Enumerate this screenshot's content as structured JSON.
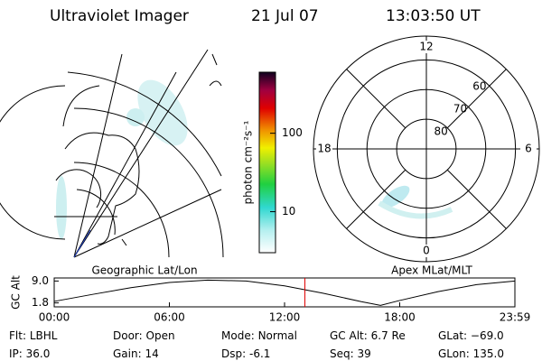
{
  "header": {
    "title": "Ultraviolet Imager",
    "date": "21 Jul 07",
    "time": "13:03:50 UT"
  },
  "left_panel": {
    "label": "Geographic Lat/Lon"
  },
  "colorbar": {
    "label": "photon cm⁻²s⁻¹",
    "log": true,
    "lim": [
      3,
      600
    ],
    "ticks": [
      10,
      100
    ]
  },
  "polar_plot": {
    "label": "Apex MLat/MLT",
    "lat_lim": [
      90,
      52
    ],
    "lat_rings": [
      80,
      70,
      60
    ],
    "mlt_ticks": [
      12,
      6,
      0,
      18
    ]
  },
  "chart_data": {
    "type": "line",
    "ylabel": "GC Alt",
    "color": "#000000",
    "x": [
      0,
      2,
      4,
      6,
      8,
      10,
      12,
      14,
      16,
      17,
      18,
      20,
      22,
      24
    ],
    "values": [
      2.3,
      4.6,
      6.8,
      8.5,
      9.3,
      9.0,
      7.4,
      5.0,
      2.2,
      1.0,
      2.6,
      5.5,
      7.8,
      9.0
    ],
    "xlim": [
      0,
      24
    ],
    "ylim": [
      0.5,
      10
    ],
    "xticks": [
      {
        "value": 0,
        "label": "00:00"
      },
      {
        "value": 6,
        "label": "06:00"
      },
      {
        "value": 12,
        "label": "12:00"
      },
      {
        "value": 18,
        "label": "18:00"
      },
      {
        "value": 24,
        "label": "23:59"
      }
    ],
    "yticks": [
      1.8,
      {
        "value": 9,
        "label": "9.0"
      }
    ],
    "current_time": 13.06,
    "current_color": "#e00000"
  },
  "info": [
    [
      {
        "label": "Flt:",
        "value": "LBHL"
      },
      {
        "label": "Door:",
        "value": "Open"
      },
      {
        "label": "Mode:",
        "value": "Normal"
      },
      {
        "label": "GC Alt:",
        "value": "6.7 Re"
      },
      {
        "label": "GLat:",
        "value": "−69.0"
      }
    ],
    [
      {
        "label": "IP:",
        "value": "36.0"
      },
      {
        "label": "Gain:",
        "value": "14"
      },
      {
        "label": "Dsp:",
        "value": "-6.1"
      },
      {
        "label": "Seq:",
        "value": "39"
      },
      {
        "label": "GLon:",
        "value": "135.0"
      }
    ]
  ]
}
